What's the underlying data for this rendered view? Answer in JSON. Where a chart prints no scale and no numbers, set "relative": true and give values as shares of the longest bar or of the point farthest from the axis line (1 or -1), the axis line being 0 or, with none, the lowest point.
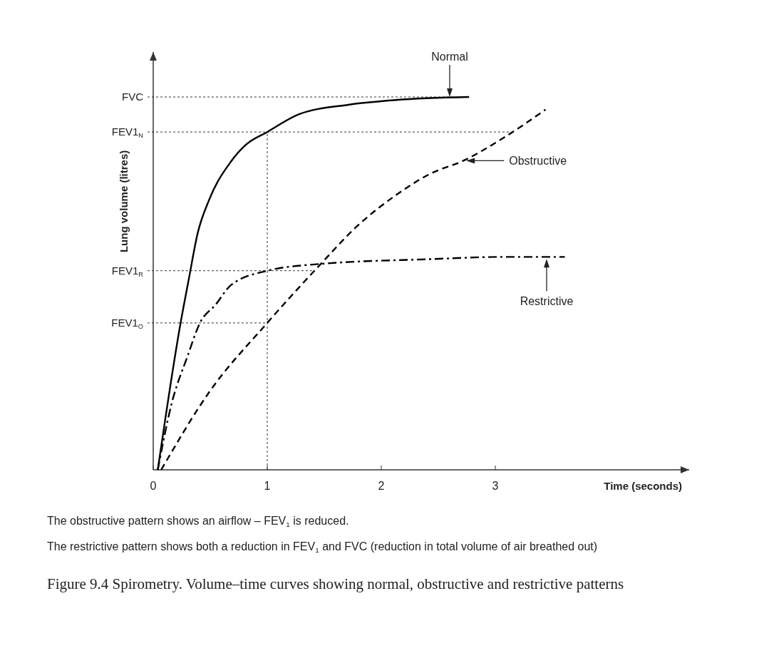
{
  "chart_data": {
    "type": "line",
    "xlabel": "Time (seconds)",
    "ylabel": "Lung volume (litres)",
    "relative": true,
    "xlim": [
      0,
      4.7
    ],
    "xticks": [
      0,
      1,
      2,
      3
    ],
    "grid": false,
    "series": [
      {
        "color": "#000000",
        "line_style": "solid",
        "x": [
          0.04,
          0.24,
          0.31,
          0.39,
          0.49,
          0.68,
          0.81,
          1,
          1.28,
          1.71,
          2.13,
          2.77
        ],
        "values": [
          0,
          0.394,
          0.508,
          0.635,
          0.724,
          0.826,
          0.871,
          0.906,
          0.954,
          0.979,
          0.992,
          1
        ]
      },
      {
        "color": "#000000",
        "line_style": "dashed",
        "x": [
          0.07,
          0.49,
          1,
          1.46,
          1.79,
          2.13,
          2.43,
          2.72,
          3.07,
          3.44
        ],
        "values": [
          0,
          0.208,
          0.394,
          0.549,
          0.654,
          0.737,
          0.794,
          0.829,
          0.89,
          0.966
        ]
      },
      {
        "color": "#000000",
        "line_style": "dashdot",
        "x": [
          0.04,
          0.16,
          0.3,
          0.41,
          0.55,
          0.68,
          1,
          1.46,
          2.43,
          3.07,
          3.61
        ],
        "values": [
          0,
          0.176,
          0.304,
          0.394,
          0.444,
          0.495,
          0.534,
          0.552,
          0.565,
          0.571,
          0.571
        ]
      }
    ],
    "ref_lines": [
      {
        "axis": "y",
        "value": 1,
        "label": "FVC",
        "line_style": "dotted"
      },
      {
        "axis": "y",
        "value": 0.906,
        "label": "FEV1$_{N}$",
        "line_style": "dotted"
      },
      {
        "axis": "y",
        "value": 0.534,
        "label": "FEV1$_{R}$",
        "line_style": "dotted"
      },
      {
        "axis": "y",
        "value": 0.394,
        "label": "FEV1$_{O}$",
        "line_style": "dotted"
      },
      {
        "axis": "x",
        "value": 1,
        "label": null,
        "line_style": "dotted"
      }
    ],
    "annotations": [
      {
        "text": "Normal",
        "x": 2.6,
        "y": 0.998
      },
      {
        "text": "Obstructive",
        "x": 2.72,
        "y": 0.829
      },
      {
        "text": "Restrictive",
        "x": 3.45,
        "y": 0.571
      },
      "The obstructive pattern shows an airflow – FEV$_{1}$ is reduced.",
      "The restrictive pattern shows both a reduction in FEV$_{1}$ and FVC (reduction in total volume of air breathed out)",
      "Figure 9.4  Spirometry. Volume–time curves showing normal, obstructive and restrictive patterns"
    ]
  }
}
